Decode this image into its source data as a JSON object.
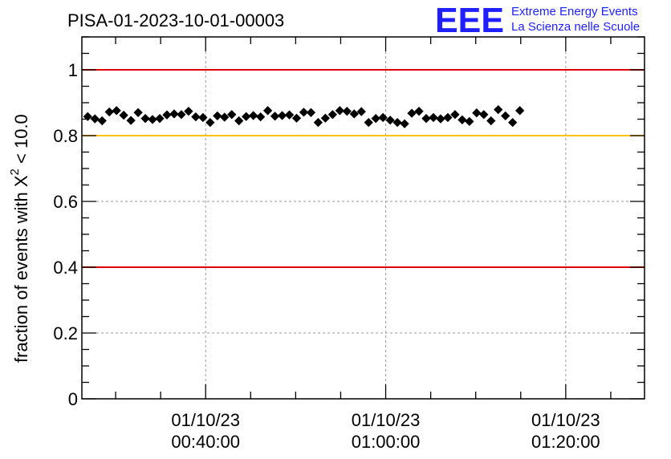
{
  "run_title": "PISA-01-2023-10-01-00003",
  "logo": {
    "mark": "EEE",
    "line1": "Extreme Energy Events",
    "line2": "La Scienza nelle Scuole",
    "color": "#1f1fff"
  },
  "chart_data": {
    "type": "scatter",
    "title": "PISA-01-2023-10-01-00003",
    "xlabel": "",
    "ylabel": "fraction of events with Χ² < 10.0",
    "ylabel_parts": {
      "prefix": "fraction of events with Χ",
      "sup": "2",
      "suffix": " < 10.0"
    },
    "x_unit": "minutes after 01/10/23 00:00:00",
    "xlim": [
      26.25,
      88.75
    ],
    "ylim": [
      0,
      1.1
    ],
    "grid": true,
    "x_ticks": [
      {
        "value": 40,
        "date": "01/10/23",
        "time": "00:40:00"
      },
      {
        "value": 60,
        "date": "01/10/23",
        "time": "01:00:00"
      },
      {
        "value": 80,
        "date": "01/10/23",
        "time": "01:20:00"
      }
    ],
    "y_ticks": [
      {
        "value": 0,
        "label": "0"
      },
      {
        "value": 0.2,
        "label": "0.2"
      },
      {
        "value": 0.4,
        "label": "0.4"
      },
      {
        "value": 0.6,
        "label": "0.6"
      },
      {
        "value": 0.8,
        "label": "0.8"
      },
      {
        "value": 1,
        "label": "1"
      }
    ],
    "reference_lines": [
      {
        "y": 1.0,
        "color": "#e00000"
      },
      {
        "y": 0.8,
        "color": "#ffc000"
      },
      {
        "y": 0.4,
        "color": "#e00000"
      }
    ],
    "series": [
      {
        "color": "#000000",
        "x_error": 0.4,
        "y_error": 0.008,
        "points": [
          [
            26.9,
            0.858
          ],
          [
            27.7,
            0.851
          ],
          [
            28.5,
            0.845
          ],
          [
            29.3,
            0.872
          ],
          [
            30.1,
            0.876
          ],
          [
            30.9,
            0.862
          ],
          [
            31.7,
            0.846
          ],
          [
            32.5,
            0.87
          ],
          [
            33.3,
            0.852
          ],
          [
            34.1,
            0.849
          ],
          [
            34.9,
            0.852
          ],
          [
            35.7,
            0.863
          ],
          [
            36.5,
            0.866
          ],
          [
            37.3,
            0.864
          ],
          [
            38.1,
            0.874
          ],
          [
            38.9,
            0.857
          ],
          [
            39.7,
            0.855
          ],
          [
            40.5,
            0.84
          ],
          [
            41.3,
            0.86
          ],
          [
            42.1,
            0.856
          ],
          [
            42.9,
            0.864
          ],
          [
            43.7,
            0.845
          ],
          [
            44.5,
            0.858
          ],
          [
            45.3,
            0.861
          ],
          [
            46.1,
            0.857
          ],
          [
            46.9,
            0.876
          ],
          [
            47.7,
            0.859
          ],
          [
            48.5,
            0.861
          ],
          [
            49.3,
            0.863
          ],
          [
            50.1,
            0.853
          ],
          [
            50.9,
            0.871
          ],
          [
            51.7,
            0.87
          ],
          [
            52.5,
            0.84
          ],
          [
            53.3,
            0.853
          ],
          [
            54.1,
            0.864
          ],
          [
            54.9,
            0.876
          ],
          [
            55.7,
            0.874
          ],
          [
            56.5,
            0.866
          ],
          [
            57.3,
            0.873
          ],
          [
            58.1,
            0.84
          ],
          [
            58.9,
            0.852
          ],
          [
            59.7,
            0.855
          ],
          [
            60.5,
            0.847
          ],
          [
            61.3,
            0.84
          ],
          [
            62.1,
            0.836
          ],
          [
            62.9,
            0.868
          ],
          [
            63.7,
            0.874
          ],
          [
            64.5,
            0.852
          ],
          [
            65.3,
            0.855
          ],
          [
            66.1,
            0.851
          ],
          [
            66.9,
            0.855
          ],
          [
            67.7,
            0.864
          ],
          [
            68.5,
            0.848
          ],
          [
            69.3,
            0.843
          ],
          [
            70.1,
            0.869
          ],
          [
            70.9,
            0.864
          ],
          [
            71.7,
            0.845
          ],
          [
            72.5,
            0.879
          ],
          [
            73.3,
            0.86
          ],
          [
            74.1,
            0.84
          ],
          [
            74.9,
            0.876
          ]
        ]
      }
    ]
  }
}
